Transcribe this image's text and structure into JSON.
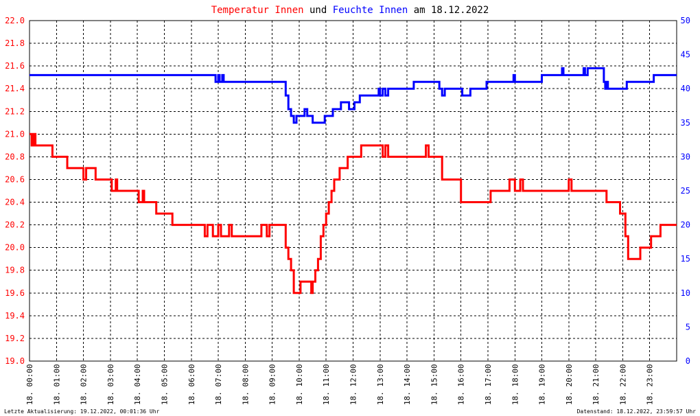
{
  "title": {
    "part1": "Temperatur Innen",
    "part2": " und ",
    "part3": "Feuchte Innen",
    "part4": " am 18.12.2022"
  },
  "footer": {
    "left": "Letzte Aktualisierung: 19.12.2022, 00:01:36 Uhr",
    "right": "Datenstand: 18.12.2022, 23:59:57 Uhr"
  },
  "colors": {
    "temperature": "#ff0000",
    "humidity": "#0000ff",
    "grid": "#000000",
    "title_neutral": "#000000"
  },
  "chart_data": {
    "type": "line",
    "grid": true,
    "left_axis": {
      "series": "Temperatur Innen",
      "ylim": [
        19.0,
        22.0
      ],
      "ticks": [
        "19.0",
        "19.2",
        "19.4",
        "19.6",
        "19.8",
        "20.0",
        "20.2",
        "20.4",
        "20.6",
        "20.8",
        "21.0",
        "21.2",
        "21.4",
        "21.6",
        "21.8",
        "22.0"
      ]
    },
    "right_axis": {
      "series": "Feuchte Innen",
      "ylim": [
        0,
        50
      ],
      "ticks": [
        "0",
        "5",
        "10",
        "15",
        "20",
        "25",
        "30",
        "35",
        "40",
        "45",
        "50"
      ]
    },
    "x_axis": {
      "range_hours": [
        0,
        24
      ],
      "tick_labels": [
        "18. 00:00",
        "18. 01:00",
        "18. 02:00",
        "18. 03:00",
        "18. 04:00",
        "18. 05:00",
        "18. 06:00",
        "18. 07:00",
        "18. 08:00",
        "18. 09:00",
        "18. 10:00",
        "18. 11:00",
        "18. 12:00",
        "18. 13:00",
        "18. 14:00",
        "18. 15:00",
        "18. 16:00",
        "18. 17:00",
        "18. 18:00",
        "18. 19:00",
        "18. 20:00",
        "18. 21:00",
        "18. 22:00",
        "18. 23:00"
      ]
    },
    "series": [
      {
        "name": "Temperatur Innen",
        "axis": "left",
        "points": [
          [
            0.0,
            21.0
          ],
          [
            0.08,
            20.9
          ],
          [
            0.15,
            21.0
          ],
          [
            0.22,
            20.9
          ],
          [
            0.8,
            20.9
          ],
          [
            0.85,
            20.8
          ],
          [
            1.35,
            20.8
          ],
          [
            1.4,
            20.7
          ],
          [
            1.55,
            20.7
          ],
          [
            2.0,
            20.7
          ],
          [
            2.0,
            20.6
          ],
          [
            2.1,
            20.7
          ],
          [
            2.4,
            20.7
          ],
          [
            2.45,
            20.6
          ],
          [
            3.0,
            20.6
          ],
          [
            3.05,
            20.5
          ],
          [
            3.2,
            20.6
          ],
          [
            3.25,
            20.5
          ],
          [
            4.0,
            20.5
          ],
          [
            4.05,
            20.4
          ],
          [
            4.2,
            20.5
          ],
          [
            4.25,
            20.4
          ],
          [
            4.6,
            20.4
          ],
          [
            4.7,
            20.3
          ],
          [
            5.2,
            20.3
          ],
          [
            5.3,
            20.2
          ],
          [
            6.4,
            20.2
          ],
          [
            6.5,
            20.1
          ],
          [
            6.6,
            20.2
          ],
          [
            6.8,
            20.1
          ],
          [
            7.0,
            20.2
          ],
          [
            7.1,
            20.1
          ],
          [
            7.4,
            20.2
          ],
          [
            7.5,
            20.1
          ],
          [
            8.5,
            20.1
          ],
          [
            8.6,
            20.2
          ],
          [
            8.8,
            20.1
          ],
          [
            8.9,
            20.2
          ],
          [
            9.4,
            20.2
          ],
          [
            9.5,
            20.0
          ],
          [
            9.6,
            19.9
          ],
          [
            9.7,
            19.8
          ],
          [
            9.8,
            19.6
          ],
          [
            10.0,
            19.6
          ],
          [
            10.05,
            19.7
          ],
          [
            10.4,
            19.7
          ],
          [
            10.45,
            19.6
          ],
          [
            10.5,
            19.7
          ],
          [
            10.6,
            19.8
          ],
          [
            10.7,
            19.9
          ],
          [
            10.8,
            20.1
          ],
          [
            10.9,
            20.2
          ],
          [
            11.0,
            20.3
          ],
          [
            11.1,
            20.4
          ],
          [
            11.2,
            20.5
          ],
          [
            11.3,
            20.6
          ],
          [
            11.5,
            20.7
          ],
          [
            11.8,
            20.8
          ],
          [
            12.2,
            20.8
          ],
          [
            12.3,
            20.9
          ],
          [
            13.0,
            20.9
          ],
          [
            13.1,
            20.8
          ],
          [
            13.2,
            20.9
          ],
          [
            13.3,
            20.8
          ],
          [
            14.6,
            20.8
          ],
          [
            14.7,
            20.9
          ],
          [
            14.8,
            20.8
          ],
          [
            15.2,
            20.8
          ],
          [
            15.3,
            20.6
          ],
          [
            15.9,
            20.6
          ],
          [
            16.0,
            20.4
          ],
          [
            17.0,
            20.4
          ],
          [
            17.1,
            20.5
          ],
          [
            17.7,
            20.5
          ],
          [
            17.8,
            20.6
          ],
          [
            18.0,
            20.5
          ],
          [
            18.2,
            20.6
          ],
          [
            18.3,
            20.5
          ],
          [
            19.9,
            20.5
          ],
          [
            20.0,
            20.6
          ],
          [
            20.1,
            20.5
          ],
          [
            21.3,
            20.5
          ],
          [
            21.4,
            20.4
          ],
          [
            21.8,
            20.4
          ],
          [
            21.9,
            20.3
          ],
          [
            22.1,
            20.1
          ],
          [
            22.2,
            19.9
          ],
          [
            22.6,
            19.9
          ],
          [
            22.65,
            20.0
          ],
          [
            23.0,
            20.0
          ],
          [
            23.05,
            20.1
          ],
          [
            23.3,
            20.1
          ],
          [
            23.4,
            20.2
          ],
          [
            24.0,
            20.2
          ]
        ]
      },
      {
        "name": "Feuchte Innen",
        "axis": "right",
        "points": [
          [
            0.0,
            42
          ],
          [
            6.85,
            42
          ],
          [
            6.9,
            41
          ],
          [
            7.0,
            42
          ],
          [
            7.05,
            41
          ],
          [
            7.15,
            42
          ],
          [
            7.2,
            41
          ],
          [
            9.35,
            41
          ],
          [
            9.5,
            39
          ],
          [
            9.6,
            37
          ],
          [
            9.7,
            36
          ],
          [
            9.8,
            35
          ],
          [
            9.9,
            36
          ],
          [
            10.1,
            36
          ],
          [
            10.2,
            37
          ],
          [
            10.3,
            36
          ],
          [
            10.5,
            35
          ],
          [
            10.9,
            35
          ],
          [
            10.95,
            36
          ],
          [
            11.2,
            36
          ],
          [
            11.25,
            37
          ],
          [
            11.5,
            37
          ],
          [
            11.55,
            38
          ],
          [
            11.8,
            38
          ],
          [
            11.85,
            37
          ],
          [
            12.0,
            37
          ],
          [
            12.05,
            38
          ],
          [
            12.2,
            38
          ],
          [
            12.25,
            39
          ],
          [
            12.9,
            39
          ],
          [
            12.95,
            40
          ],
          [
            13.0,
            39
          ],
          [
            13.1,
            40
          ],
          [
            13.2,
            39
          ],
          [
            13.3,
            40
          ],
          [
            14.2,
            40
          ],
          [
            14.25,
            41
          ],
          [
            15.1,
            41
          ],
          [
            15.2,
            40
          ],
          [
            15.3,
            39
          ],
          [
            15.4,
            40
          ],
          [
            16.0,
            40
          ],
          [
            16.05,
            39
          ],
          [
            16.3,
            39
          ],
          [
            16.35,
            40
          ],
          [
            16.9,
            40
          ],
          [
            16.95,
            41
          ],
          [
            17.9,
            41
          ],
          [
            17.95,
            42
          ],
          [
            18.0,
            41
          ],
          [
            18.95,
            41
          ],
          [
            19.0,
            42
          ],
          [
            19.7,
            42
          ],
          [
            19.75,
            43
          ],
          [
            19.8,
            42
          ],
          [
            20.5,
            42
          ],
          [
            20.55,
            43
          ],
          [
            20.6,
            42
          ],
          [
            20.7,
            43
          ],
          [
            21.25,
            43
          ],
          [
            21.3,
            41
          ],
          [
            21.35,
            40
          ],
          [
            21.4,
            41
          ],
          [
            21.45,
            40
          ],
          [
            22.1,
            40
          ],
          [
            22.15,
            41
          ],
          [
            23.1,
            41
          ],
          [
            23.15,
            42
          ],
          [
            24.0,
            42
          ]
        ]
      }
    ]
  }
}
